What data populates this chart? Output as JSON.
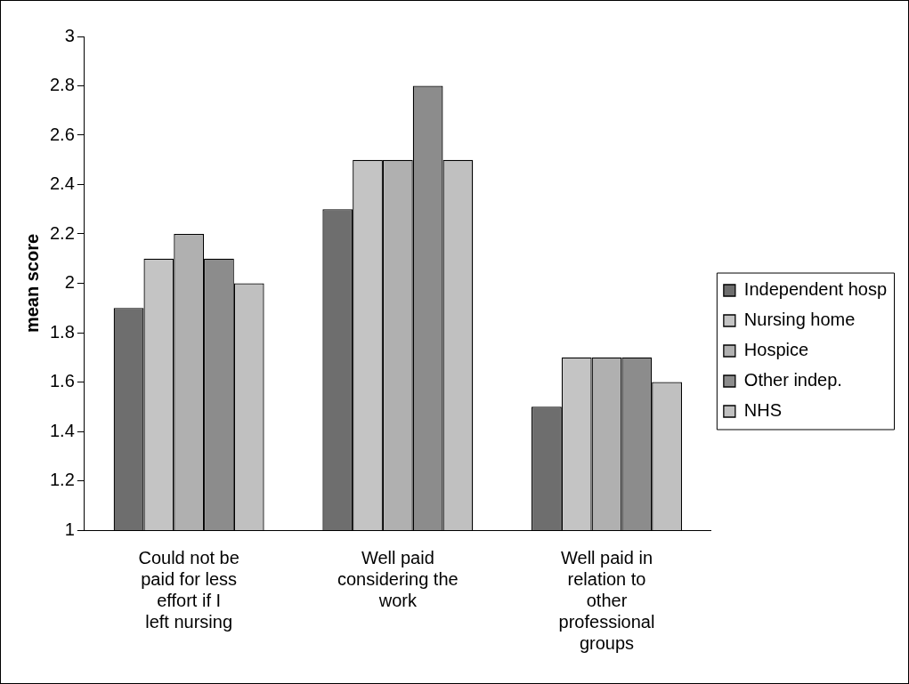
{
  "chart_data": {
    "type": "bar",
    "ylabel": "mean score",
    "categories": [
      "Could not be paid for less effort if I left nursing",
      "Well paid considering the work",
      "Well paid in relation to other professional groups"
    ],
    "series": [
      {
        "name": "Independent hosp",
        "color": "#6e6e6e",
        "values": [
          1.9,
          2.3,
          1.5
        ]
      },
      {
        "name": "Nursing home",
        "color": "#c4c4c4",
        "values": [
          2.1,
          2.5,
          1.7
        ]
      },
      {
        "name": "Hospice",
        "color": "#b0b0b0",
        "values": [
          2.2,
          2.5,
          1.7
        ]
      },
      {
        "name": "Other indep.",
        "color": "#8c8c8c",
        "values": [
          2.1,
          2.8,
          1.7
        ]
      },
      {
        "name": "NHS",
        "color": "#c0c0c0",
        "values": [
          2.0,
          2.5,
          1.6
        ]
      }
    ],
    "ylim": [
      1,
      3
    ],
    "yticks": [
      1,
      1.2,
      1.4,
      1.6,
      1.8,
      2,
      2.2,
      2.4,
      2.6,
      2.8,
      3
    ],
    "grid": false,
    "legend": "right"
  }
}
